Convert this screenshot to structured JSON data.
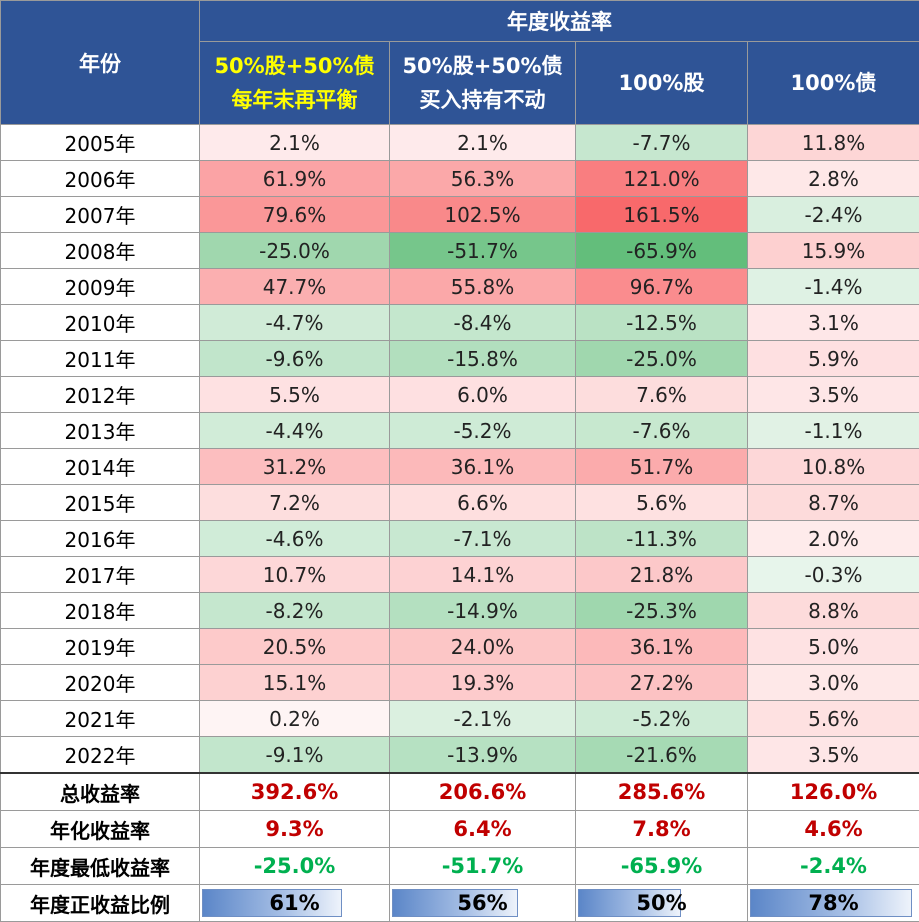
{
  "chart_data": {
    "type": "table",
    "header": {
      "year_label": "年份",
      "group_label": "年度收益率",
      "columns": [
        {
          "line1": "50%股+50%债",
          "line2": "每年末再平衡",
          "highlight": true
        },
        {
          "line1": "50%股+50%债",
          "line2": "买入持有不动",
          "highlight": false
        },
        {
          "line1": "100%股",
          "line2": "",
          "highlight": false
        },
        {
          "line1": "100%债",
          "line2": "",
          "highlight": false
        }
      ]
    },
    "rows": [
      {
        "year": "2005年",
        "values": [
          2.1,
          2.1,
          -7.7,
          11.8
        ]
      },
      {
        "year": "2006年",
        "values": [
          61.9,
          56.3,
          121.0,
          2.8
        ]
      },
      {
        "year": "2007年",
        "values": [
          79.6,
          102.5,
          161.5,
          -2.4
        ]
      },
      {
        "year": "2008年",
        "values": [
          -25.0,
          -51.7,
          -65.9,
          15.9
        ]
      },
      {
        "year": "2009年",
        "values": [
          47.7,
          55.8,
          96.7,
          -1.4
        ]
      },
      {
        "year": "2010年",
        "values": [
          -4.7,
          -8.4,
          -12.5,
          3.1
        ]
      },
      {
        "year": "2011年",
        "values": [
          -9.6,
          -15.8,
          -25.0,
          5.9
        ]
      },
      {
        "year": "2012年",
        "values": [
          5.5,
          6.0,
          7.6,
          3.5
        ]
      },
      {
        "year": "2013年",
        "values": [
          -4.4,
          -5.2,
          -7.6,
          -1.1
        ]
      },
      {
        "year": "2014年",
        "values": [
          31.2,
          36.1,
          51.7,
          10.8
        ]
      },
      {
        "year": "2015年",
        "values": [
          7.2,
          6.6,
          5.6,
          8.7
        ]
      },
      {
        "year": "2016年",
        "values": [
          -4.6,
          -7.1,
          -11.3,
          2.0
        ]
      },
      {
        "year": "2017年",
        "values": [
          10.7,
          14.1,
          21.8,
          -0.3
        ]
      },
      {
        "year": "2018年",
        "values": [
          -8.2,
          -14.9,
          -25.3,
          8.8
        ]
      },
      {
        "year": "2019年",
        "values": [
          20.5,
          24.0,
          36.1,
          5.0
        ]
      },
      {
        "year": "2020年",
        "values": [
          15.1,
          19.3,
          27.2,
          3.0
        ]
      },
      {
        "year": "2021年",
        "values": [
          0.2,
          -2.1,
          -5.2,
          5.6
        ]
      },
      {
        "year": "2022年",
        "values": [
          -9.1,
          -13.9,
          -21.6,
          3.5
        ]
      }
    ],
    "summary": {
      "total": {
        "label": "总收益率",
        "values": [
          "392.6%",
          "206.6%",
          "285.6%",
          "126.0%"
        ]
      },
      "annualized": {
        "label": "年化收益率",
        "values": [
          "9.3%",
          "6.4%",
          "7.8%",
          "4.6%"
        ]
      },
      "min": {
        "label": "年度最低收益率",
        "values": [
          "-25.0%",
          "-51.7%",
          "-65.9%",
          "-2.4%"
        ]
      },
      "positive_ratio": {
        "label": "年度正收益比例",
        "values": [
          "61%",
          "56%",
          "50%",
          "78%"
        ],
        "ratios": [
          0.61,
          0.56,
          0.5,
          0.78
        ]
      }
    },
    "colors": {
      "header_bg": "#2f5496",
      "highlight_text": "#ffff00",
      "positive_max": "#f8696b",
      "negative_max": "#63be7b",
      "summary_red": "#c00000",
      "summary_green": "#00b050",
      "bar_fill": "#5b86c8"
    }
  }
}
